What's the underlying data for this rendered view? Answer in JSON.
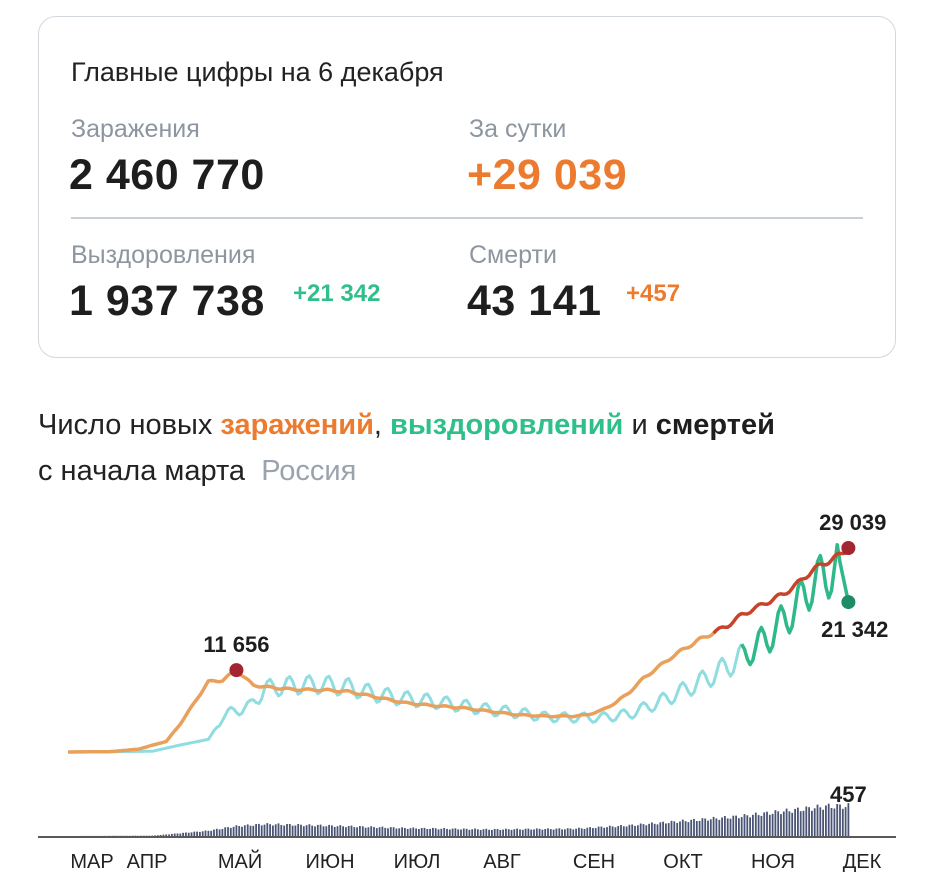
{
  "summary": {
    "title": "Главные цифры на 6 декабря",
    "infections_label": "Заражения",
    "infections_value": "2 460 770",
    "daily_label": "За сутки",
    "daily_value": "+29 039",
    "recoveries_label": "Выздоровления",
    "recoveries_value": "1 937 738",
    "recoveries_delta": "+21 342",
    "deaths_label": "Смерти",
    "deaths_value": "43 141",
    "deaths_delta": "+457"
  },
  "heading": {
    "part1": "Число новых ",
    "infections": "заражений",
    "comma": ",",
    "recoveries": "выздоровлений",
    "and": " и ",
    "deaths": "смертей",
    "line2": "с начала марта",
    "region": "Россия"
  },
  "colors": {
    "infections": "#e8a05a",
    "infections_late": "#c8432c",
    "recoveries": "#8fdde0",
    "recoveries_late": "#2fb889",
    "deaths": "#4a5575",
    "peak_dot": "#a32530",
    "recovery_dot": "#1e8c68"
  },
  "chart_data": {
    "type": "line",
    "x_months": [
      "МАР",
      "АПР",
      "МАЙ",
      "ИЮН",
      "ИЮЛ",
      "АВГ",
      "СЕН",
      "ОКТ",
      "НОЯ",
      "ДЕК"
    ],
    "series": [
      {
        "key": "infections",
        "points": [
          [
            0,
            0
          ],
          [
            15,
            50
          ],
          [
            25,
            400
          ],
          [
            35,
            1500
          ],
          [
            40,
            4000
          ],
          [
            45,
            7000
          ],
          [
            50,
            10000
          ],
          [
            55,
            10200
          ],
          [
            60,
            11656
          ],
          [
            66,
            9500
          ],
          [
            72,
            9200
          ],
          [
            80,
            8900
          ],
          [
            92,
            8800
          ],
          [
            100,
            8600
          ],
          [
            110,
            7800
          ],
          [
            120,
            7000
          ],
          [
            130,
            6600
          ],
          [
            140,
            6300
          ],
          [
            150,
            5800
          ],
          [
            160,
            5300
          ],
          [
            170,
            5100
          ],
          [
            180,
            5100
          ],
          [
            185,
            5300
          ],
          [
            190,
            5900
          ],
          [
            195,
            7000
          ],
          [
            200,
            8500
          ],
          [
            205,
            10500
          ],
          [
            210,
            12000
          ],
          [
            215,
            13500
          ],
          [
            220,
            14800
          ],
          [
            225,
            16000
          ],
          [
            230,
            17000
          ],
          [
            235,
            18000
          ],
          [
            240,
            19500
          ],
          [
            245,
            20500
          ],
          [
            250,
            21500
          ],
          [
            255,
            22500
          ],
          [
            260,
            24000
          ],
          [
            265,
            25800
          ],
          [
            270,
            27000
          ],
          [
            275,
            28000
          ],
          [
            278,
            29039
          ]
        ]
      },
      {
        "key": "recoveries",
        "points": [
          [
            0,
            0
          ],
          [
            30,
            100
          ],
          [
            40,
            1000
          ],
          [
            50,
            1800
          ],
          [
            55,
            5000
          ],
          [
            60,
            6000
          ],
          [
            65,
            6500
          ],
          [
            70,
            9000
          ],
          [
            80,
            9500
          ],
          [
            90,
            9600
          ],
          [
            100,
            9200
          ],
          [
            110,
            8200
          ],
          [
            120,
            7600
          ],
          [
            130,
            7200
          ],
          [
            140,
            6600
          ],
          [
            150,
            6000
          ],
          [
            160,
            5600
          ],
          [
            170,
            5000
          ],
          [
            180,
            4900
          ],
          [
            190,
            4900
          ],
          [
            200,
            5400
          ],
          [
            210,
            7000
          ],
          [
            220,
            8900
          ],
          [
            230,
            11000
          ],
          [
            240,
            13500
          ],
          [
            250,
            16500
          ],
          [
            260,
            21000
          ],
          [
            265,
            24000
          ],
          [
            270,
            25000
          ],
          [
            275,
            27000
          ],
          [
            278,
            21342
          ]
        ]
      },
      {
        "key": "deaths",
        "points": [
          [
            0,
            0
          ],
          [
            30,
            5
          ],
          [
            50,
            80
          ],
          [
            60,
            150
          ],
          [
            70,
            180
          ],
          [
            90,
            160
          ],
          [
            120,
            120
          ],
          [
            150,
            100
          ],
          [
            180,
            110
          ],
          [
            200,
            160
          ],
          [
            220,
            230
          ],
          [
            240,
            300
          ],
          [
            260,
            400
          ],
          [
            270,
            450
          ],
          [
            278,
            457
          ]
        ]
      }
    ],
    "annotations": [
      {
        "label": "11 656",
        "series": "infections",
        "day": 60,
        "value": 11656
      },
      {
        "label": "29 039",
        "series": "infections",
        "day": 278,
        "value": 29039
      },
      {
        "label": "21 342",
        "series": "recoveries",
        "day": 278,
        "value": 21342
      },
      {
        "label": "457",
        "series": "deaths",
        "day": 278,
        "value": 457
      }
    ]
  }
}
